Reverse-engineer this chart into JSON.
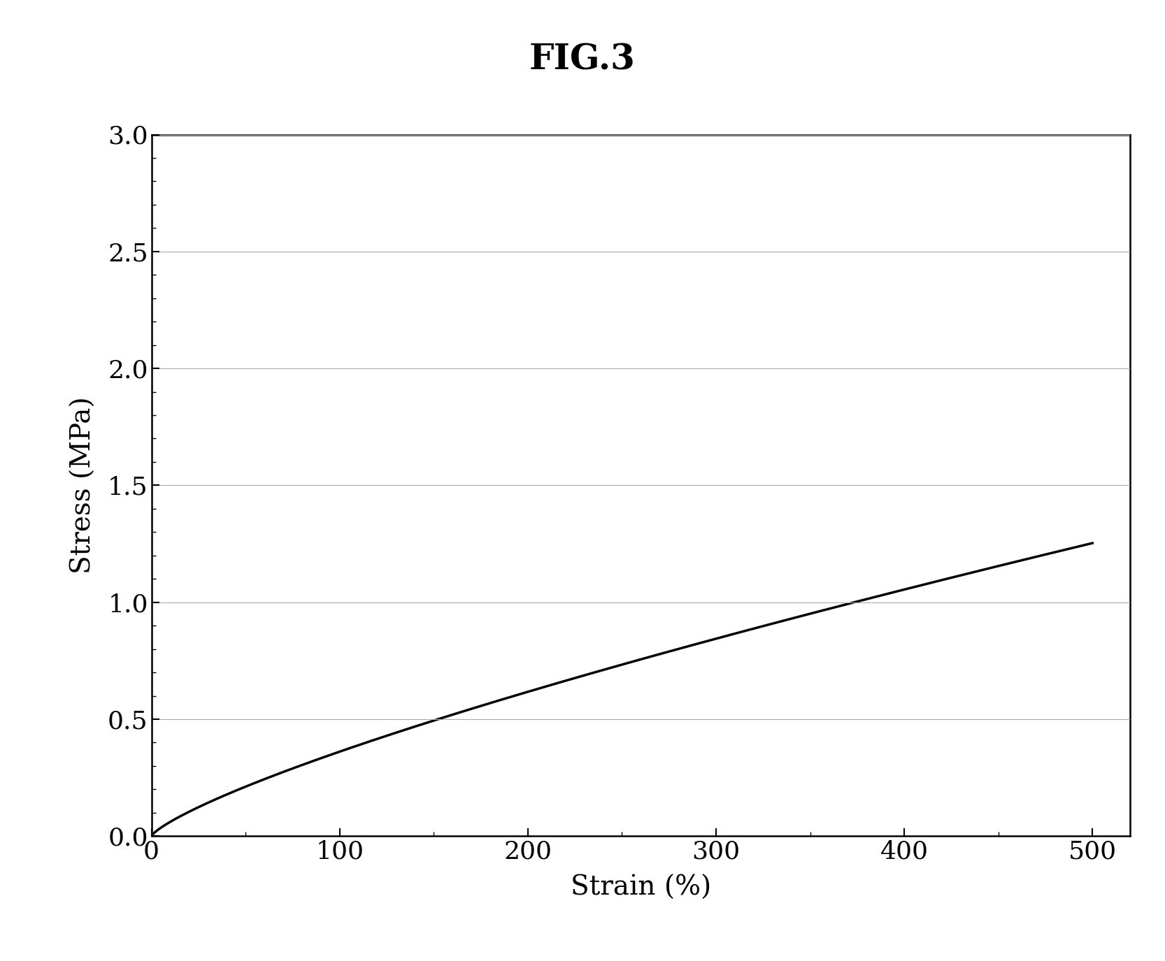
{
  "title": "FIG.3",
  "xlabel": "Strain (%)",
  "ylabel": "Stress (MPa)",
  "xlim": [
    0,
    520
  ],
  "ylim": [
    0.0,
    3.0
  ],
  "xticks": [
    0,
    100,
    200,
    300,
    400,
    500
  ],
  "yticks": [
    0.0,
    0.5,
    1.0,
    1.5,
    2.0,
    2.5,
    3.0
  ],
  "grid_color": "#aaaaaa",
  "line_color": "#000000",
  "bg_color": "#ffffff",
  "title_fontsize": 36,
  "axis_label_fontsize": 28,
  "tick_fontsize": 26,
  "line_width": 2.5,
  "a_off": 0.04,
  "b_coef": 0.00925,
  "c_exp": 0.788
}
